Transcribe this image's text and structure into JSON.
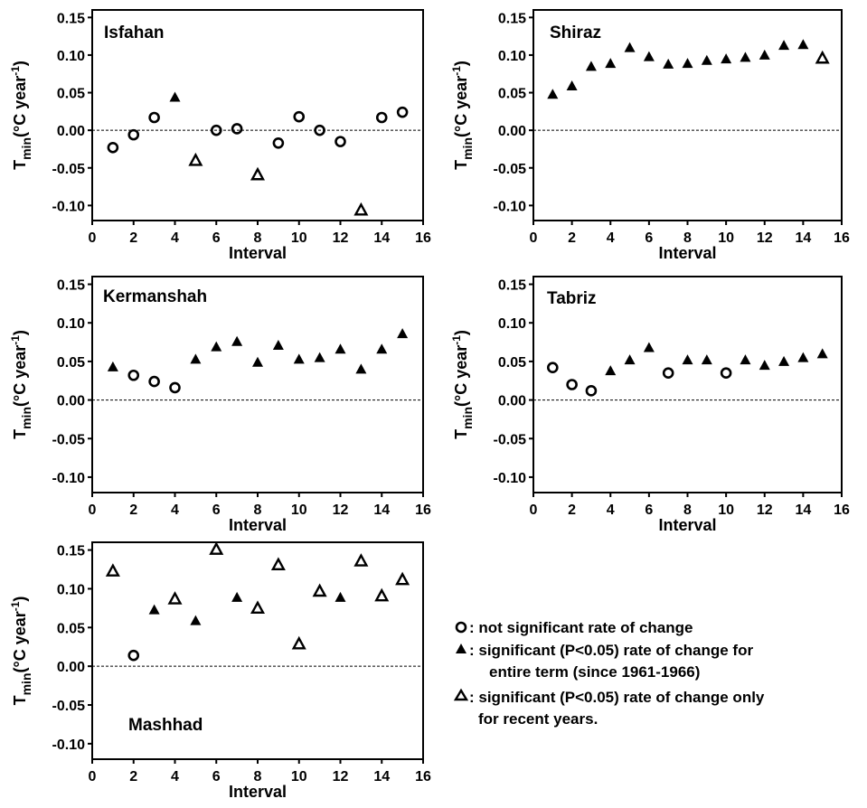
{
  "chart_data": [
    {
      "type": "scatter",
      "title": "Isfahan",
      "xlabel": "Interval",
      "ylabel": "T_min (°C year^-1)",
      "xlim": [
        0,
        16
      ],
      "ylim": [
        -0.12,
        0.16
      ],
      "xticks": [
        "0",
        "2",
        "4",
        "6",
        "8",
        "10",
        "12",
        "14",
        "16"
      ],
      "yticks": [
        "0.15",
        "0.10",
        "0.05",
        "0.00",
        "-0.05",
        "-0.10"
      ],
      "zero_line": "dashed",
      "points": [
        {
          "x": 1,
          "y": -0.023,
          "marker": "circle"
        },
        {
          "x": 2,
          "y": -0.006,
          "marker": "circle"
        },
        {
          "x": 3,
          "y": 0.017,
          "marker": "circle"
        },
        {
          "x": 4,
          "y": 0.044,
          "marker": "filled-triangle"
        },
        {
          "x": 5,
          "y": -0.04,
          "marker": "open-triangle"
        },
        {
          "x": 6,
          "y": 0.0,
          "marker": "circle"
        },
        {
          "x": 7,
          "y": 0.002,
          "marker": "circle"
        },
        {
          "x": 8,
          "y": -0.059,
          "marker": "open-triangle"
        },
        {
          "x": 9,
          "y": -0.017,
          "marker": "circle"
        },
        {
          "x": 10,
          "y": 0.018,
          "marker": "circle"
        },
        {
          "x": 11,
          "y": 0.0,
          "marker": "circle"
        },
        {
          "x": 12,
          "y": -0.015,
          "marker": "circle"
        },
        {
          "x": 13,
          "y": -0.106,
          "marker": "open-triangle"
        },
        {
          "x": 14,
          "y": 0.017,
          "marker": "circle"
        },
        {
          "x": 15,
          "y": 0.024,
          "marker": "circle"
        }
      ]
    },
    {
      "type": "scatter",
      "title": "Shiraz",
      "xlabel": "Interval",
      "ylabel": "T_min (°C year^-1)",
      "xlim": [
        0,
        16
      ],
      "ylim": [
        -0.12,
        0.16
      ],
      "xticks": [
        "0",
        "2",
        "4",
        "6",
        "8",
        "10",
        "12",
        "14",
        "16"
      ],
      "yticks": [
        "0.15",
        "0.10",
        "0.05",
        "0.00",
        "-0.05",
        "-0.10"
      ],
      "zero_line": "dashed",
      "points": [
        {
          "x": 1,
          "y": 0.048,
          "marker": "filled-triangle"
        },
        {
          "x": 2,
          "y": 0.059,
          "marker": "filled-triangle"
        },
        {
          "x": 3,
          "y": 0.085,
          "marker": "filled-triangle"
        },
        {
          "x": 4,
          "y": 0.089,
          "marker": "filled-triangle"
        },
        {
          "x": 5,
          "y": 0.11,
          "marker": "filled-triangle"
        },
        {
          "x": 6,
          "y": 0.098,
          "marker": "filled-triangle"
        },
        {
          "x": 7,
          "y": 0.088,
          "marker": "filled-triangle"
        },
        {
          "x": 8,
          "y": 0.089,
          "marker": "filled-triangle"
        },
        {
          "x": 9,
          "y": 0.093,
          "marker": "filled-triangle"
        },
        {
          "x": 10,
          "y": 0.095,
          "marker": "filled-triangle"
        },
        {
          "x": 11,
          "y": 0.097,
          "marker": "filled-triangle"
        },
        {
          "x": 12,
          "y": 0.1,
          "marker": "filled-triangle"
        },
        {
          "x": 13,
          "y": 0.113,
          "marker": "filled-triangle"
        },
        {
          "x": 14,
          "y": 0.114,
          "marker": "filled-triangle"
        },
        {
          "x": 15,
          "y": 0.096,
          "marker": "open-triangle"
        }
      ]
    },
    {
      "type": "scatter",
      "title": "Kermanshah",
      "xlabel": "Interval",
      "ylabel": "T_min (°C year^-1)",
      "xlim": [
        0,
        16
      ],
      "ylim": [
        -0.12,
        0.16
      ],
      "xticks": [
        "0",
        "2",
        "4",
        "6",
        "8",
        "10",
        "12",
        "14",
        "16"
      ],
      "yticks": [
        "0.15",
        "0.10",
        "0.05",
        "0.00",
        "-0.05",
        "-0.10"
      ],
      "zero_line": "dashed",
      "points": [
        {
          "x": 1,
          "y": 0.043,
          "marker": "filled-triangle"
        },
        {
          "x": 2,
          "y": 0.032,
          "marker": "circle"
        },
        {
          "x": 3,
          "y": 0.024,
          "marker": "circle"
        },
        {
          "x": 4,
          "y": 0.016,
          "marker": "circle"
        },
        {
          "x": 5,
          "y": 0.053,
          "marker": "filled-triangle"
        },
        {
          "x": 6,
          "y": 0.069,
          "marker": "filled-triangle"
        },
        {
          "x": 7,
          "y": 0.076,
          "marker": "filled-triangle"
        },
        {
          "x": 8,
          "y": 0.049,
          "marker": "filled-triangle"
        },
        {
          "x": 9,
          "y": 0.071,
          "marker": "filled-triangle"
        },
        {
          "x": 10,
          "y": 0.053,
          "marker": "filled-triangle"
        },
        {
          "x": 11,
          "y": 0.055,
          "marker": "filled-triangle"
        },
        {
          "x": 12,
          "y": 0.066,
          "marker": "filled-triangle"
        },
        {
          "x": 13,
          "y": 0.04,
          "marker": "filled-triangle"
        },
        {
          "x": 14,
          "y": 0.066,
          "marker": "filled-triangle"
        },
        {
          "x": 15,
          "y": 0.086,
          "marker": "filled-triangle"
        }
      ]
    },
    {
      "type": "scatter",
      "title": "Tabriz",
      "xlabel": "Interval",
      "ylabel": "T_min (°C year^-1)",
      "xlim": [
        0,
        16
      ],
      "ylim": [
        -0.12,
        0.16
      ],
      "xticks": [
        "0",
        "2",
        "4",
        "6",
        "8",
        "10",
        "12",
        "14",
        "16"
      ],
      "yticks": [
        "0.15",
        "0.10",
        "0.05",
        "0.00",
        "-0.05",
        "-0.10"
      ],
      "zero_line": "dashed",
      "points": [
        {
          "x": 1,
          "y": 0.042,
          "marker": "circle"
        },
        {
          "x": 2,
          "y": 0.02,
          "marker": "circle"
        },
        {
          "x": 3,
          "y": 0.012,
          "marker": "circle"
        },
        {
          "x": 4,
          "y": 0.038,
          "marker": "filled-triangle"
        },
        {
          "x": 5,
          "y": 0.052,
          "marker": "filled-triangle"
        },
        {
          "x": 6,
          "y": 0.068,
          "marker": "filled-triangle"
        },
        {
          "x": 7,
          "y": 0.035,
          "marker": "circle"
        },
        {
          "x": 8,
          "y": 0.052,
          "marker": "filled-triangle"
        },
        {
          "x": 9,
          "y": 0.052,
          "marker": "filled-triangle"
        },
        {
          "x": 10,
          "y": 0.035,
          "marker": "circle"
        },
        {
          "x": 11,
          "y": 0.052,
          "marker": "filled-triangle"
        },
        {
          "x": 12,
          "y": 0.045,
          "marker": "filled-triangle"
        },
        {
          "x": 13,
          "y": 0.05,
          "marker": "filled-triangle"
        },
        {
          "x": 14,
          "y": 0.055,
          "marker": "filled-triangle"
        },
        {
          "x": 15,
          "y": 0.06,
          "marker": "filled-triangle"
        }
      ]
    },
    {
      "type": "scatter",
      "title": "Mashhad",
      "xlabel": "Interval",
      "ylabel": "T_min (°C year^-1)",
      "xlim": [
        0,
        16
      ],
      "ylim": [
        -0.12,
        0.16
      ],
      "xticks": [
        "0",
        "2",
        "4",
        "6",
        "8",
        "10",
        "12",
        "14",
        "16"
      ],
      "yticks": [
        "0.15",
        "0.10",
        "0.05",
        "0.00",
        "-0.05",
        "-0.10"
      ],
      "zero_line": "dashed",
      "points": [
        {
          "x": 1,
          "y": 0.123,
          "marker": "open-triangle"
        },
        {
          "x": 2,
          "y": 0.014,
          "marker": "circle"
        },
        {
          "x": 3,
          "y": 0.073,
          "marker": "filled-triangle"
        },
        {
          "x": 4,
          "y": 0.087,
          "marker": "open-triangle"
        },
        {
          "x": 5,
          "y": 0.059,
          "marker": "filled-triangle"
        },
        {
          "x": 6,
          "y": 0.151,
          "marker": "open-triangle"
        },
        {
          "x": 7,
          "y": 0.089,
          "marker": "filled-triangle"
        },
        {
          "x": 8,
          "y": 0.075,
          "marker": "open-triangle"
        },
        {
          "x": 9,
          "y": 0.131,
          "marker": "open-triangle"
        },
        {
          "x": 10,
          "y": 0.029,
          "marker": "open-triangle"
        },
        {
          "x": 11,
          "y": 0.097,
          "marker": "open-triangle"
        },
        {
          "x": 12,
          "y": 0.089,
          "marker": "filled-triangle"
        },
        {
          "x": 13,
          "y": 0.136,
          "marker": "open-triangle"
        },
        {
          "x": 14,
          "y": 0.091,
          "marker": "open-triangle"
        },
        {
          "x": 15,
          "y": 0.112,
          "marker": "open-triangle"
        }
      ]
    }
  ],
  "legend": {
    "entries": [
      {
        "marker": "circle",
        "text": ": not significant rate of change"
      },
      {
        "marker": "filled-triangle",
        "text": ": significant (P<0.05) rate of change for",
        "cont": "entire term (since 1961-1966)"
      },
      {
        "marker": "open-triangle",
        "text": ": significant (P<0.05) rate of change only",
        "cont": "for recent years."
      }
    ]
  }
}
